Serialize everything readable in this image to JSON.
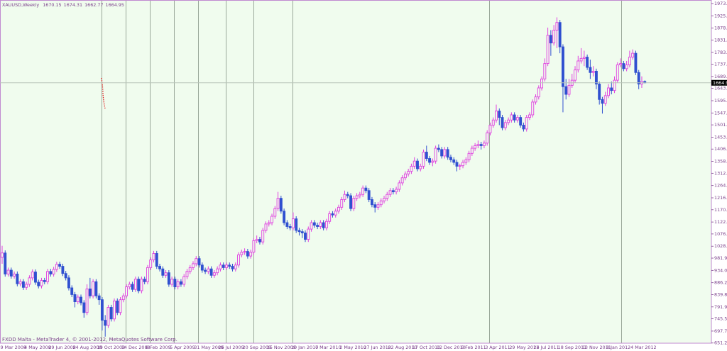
{
  "chart_data": {
    "type": "candlestick",
    "title": "XAUUSD,Weekly",
    "watermark": "FXDD Malta - MetaTrader 4, © 2001-2012, MetaQuotes Software Corp.",
    "up_color": "#e040e0",
    "down_color": "#3050d0",
    "background": "#f0fcee",
    "ylim": [
      650.5,
      1987.5
    ],
    "yticks": [
      {
        "value": 651.2,
        "label": "651.20"
      },
      {
        "value": 697.7,
        "label": "697.70"
      },
      745.55,
      791.95,
      {
        "value": 839.8,
        "label": "839.80"
      },
      {
        "value": 886.2,
        "label": "886.20"
      },
      934.05,
      {
        "value": 981.9,
        "label": "981.90"
      },
      {
        "value": 1028.3,
        "label": "1028.30"
      },
      1076.15,
      1122.55,
      {
        "value": 1170.4,
        "label": "1170.40"
      },
      {
        "value": 1216.8,
        "label": "1216.80"
      },
      1264.65,
      {
        "value": 1312.5,
        "label": "1312.50"
      },
      {
        "value": 1358.9,
        "label": "1358.90"
      },
      1406.75,
      {
        "value": 1453.1,
        "label": "1453.10"
      },
      {
        "value": 1501,
        "label": "1501.00"
      },
      {
        "value": 1547.4,
        "label": "1547.40"
      },
      1595.25,
      {
        "value": 1643.1,
        "label": "1643.10"
      },
      {
        "value": 1689.5,
        "label": "1689.50"
      },
      {
        "value": 1737.2,
        "label": "1737.20"
      },
      {
        "value": 1783.7,
        "label": "1783.70"
      },
      {
        "value": 1831.6,
        "label": "1831.60"
      },
      {
        "value": 1878,
        "label": "1878.00"
      },
      1925.85,
      1973.75
    ],
    "categories": [
      "9 Mar 2008",
      null,
      null,
      null,
      null,
      null,
      null,
      null,
      "4 May 2008",
      null,
      null,
      null,
      null,
      null,
      null,
      null,
      "29 Jun 2008",
      null,
      null,
      null,
      null,
      null,
      null,
      null,
      "24 Aug 2008",
      null,
      null,
      null,
      null,
      null,
      null,
      null,
      "19 Oct 2008",
      null,
      null,
      null,
      null,
      null,
      null,
      null,
      "14 Dec 2008",
      null,
      null,
      null,
      null,
      null,
      null,
      null,
      "8 Feb 2009",
      null,
      null,
      null,
      null,
      null,
      null,
      null,
      "5 Apr 2009",
      null,
      null,
      null,
      null,
      null,
      null,
      null,
      "31 May 2009",
      null,
      null,
      null,
      null,
      null,
      null,
      null,
      "26 Jul 2009",
      null,
      null,
      null,
      null,
      null,
      null,
      null,
      "20 Sep 2009",
      null,
      null,
      null,
      null,
      null,
      null,
      null,
      "15 Nov 2009",
      null,
      null,
      null,
      null,
      null,
      null,
      null,
      "10 Jan 2010",
      null,
      null,
      null,
      null,
      null,
      null,
      null,
      "7 Mar 2010",
      null,
      null,
      null,
      null,
      null,
      null,
      null,
      "2 May 2010",
      null,
      null,
      null,
      null,
      null,
      null,
      null,
      "27 Jun 2010",
      null,
      null,
      null,
      null,
      null,
      null,
      null,
      "22 Aug 2010",
      null,
      null,
      null,
      null,
      null,
      null,
      null,
      "17 Oct 2010",
      null,
      null,
      null,
      null,
      null,
      null,
      null,
      "12 Dec 2010",
      null,
      null,
      null,
      null,
      null,
      null,
      null,
      "6 Feb 2011",
      null,
      null,
      null,
      null,
      null,
      null,
      null,
      "3 Apr 2011",
      null,
      null,
      null,
      null,
      null,
      null,
      null,
      "29 May 2011",
      null,
      null,
      null,
      null,
      null,
      null,
      null,
      "24 Jul 2011",
      null,
      null,
      null,
      null,
      null,
      null,
      null,
      "18 Sep 2011",
      null,
      null,
      null,
      null,
      null,
      null,
      null,
      "13 Nov 2011",
      null,
      null,
      null,
      null,
      null,
      null,
      null,
      "8 Jan 2012",
      null,
      null,
      null,
      null,
      null,
      null,
      null,
      "4 Mar 2012",
      null,
      null,
      null,
      null
    ],
    "ohlc": [
      [
        985,
        1030,
        960,
        1002
      ],
      [
        1002,
        1012,
        910,
        920
      ],
      [
        920,
        945,
        910,
        935
      ],
      [
        935,
        945,
        902,
        912
      ],
      [
        912,
        930,
        902,
        920
      ],
      [
        920,
        930,
        872,
        882
      ],
      [
        882,
        900,
        872,
        890
      ],
      [
        890,
        900,
        858,
        868
      ],
      [
        868,
        890,
        858,
        880
      ],
      [
        880,
        915,
        870,
        905
      ],
      [
        905,
        938,
        895,
        928
      ],
      [
        928,
        938,
        878,
        888
      ],
      [
        888,
        898,
        864,
        874
      ],
      [
        874,
        905,
        864,
        895
      ],
      [
        895,
        905,
        880,
        890
      ],
      [
        890,
        940,
        880,
        930
      ],
      [
        930,
        940,
        910,
        920
      ],
      [
        920,
        948,
        910,
        938
      ],
      [
        938,
        968,
        928,
        958
      ],
      [
        958,
        968,
        940,
        950
      ],
      [
        950,
        960,
        912,
        922
      ],
      [
        922,
        932,
        895,
        905
      ],
      [
        905,
        915,
        856,
        866
      ],
      [
        866,
        876,
        830,
        840
      ],
      [
        840,
        850,
        790,
        812
      ],
      [
        812,
        840,
        802,
        830
      ],
      [
        830,
        840,
        798,
        808
      ],
      [
        808,
        818,
        750,
        770
      ],
      [
        770,
        880,
        760,
        862
      ],
      [
        862,
        905,
        825,
        835
      ],
      [
        835,
        900,
        825,
        890
      ],
      [
        890,
        900,
        825,
        835
      ],
      [
        835,
        845,
        800,
        820
      ],
      [
        820,
        830,
        700,
        740
      ],
      [
        740,
        760,
        676,
        720
      ],
      [
        720,
        800,
        710,
        790
      ],
      [
        790,
        800,
        735,
        745
      ],
      [
        745,
        825,
        735,
        815
      ],
      [
        815,
        825,
        760,
        770
      ],
      [
        770,
        830,
        760,
        820
      ],
      [
        820,
        845,
        810,
        835
      ],
      [
        835,
        880,
        825,
        870
      ],
      [
        870,
        890,
        860,
        880
      ],
      [
        880,
        890,
        850,
        860
      ],
      [
        860,
        910,
        850,
        900
      ],
      [
        900,
        910,
        845,
        855
      ],
      [
        855,
        910,
        845,
        900
      ],
      [
        900,
        910,
        880,
        890
      ],
      [
        890,
        955,
        880,
        945
      ],
      [
        945,
        985,
        935,
        975
      ],
      [
        975,
        1010,
        965,
        1000
      ],
      [
        1000,
        1010,
        940,
        950
      ],
      [
        950,
        960,
        930,
        940
      ],
      [
        940,
        950,
        905,
        915
      ],
      [
        915,
        935,
        905,
        925
      ],
      [
        925,
        935,
        870,
        880
      ],
      [
        880,
        910,
        870,
        900
      ],
      [
        900,
        910,
        860,
        870
      ],
      [
        870,
        900,
        860,
        890
      ],
      [
        890,
        900,
        870,
        880
      ],
      [
        880,
        920,
        870,
        910
      ],
      [
        910,
        940,
        900,
        930
      ],
      [
        930,
        955,
        920,
        945
      ],
      [
        945,
        970,
        935,
        960
      ],
      [
        960,
        990,
        950,
        980
      ],
      [
        980,
        990,
        945,
        955
      ],
      [
        955,
        965,
        925,
        935
      ],
      [
        935,
        945,
        920,
        930
      ],
      [
        930,
        950,
        920,
        940
      ],
      [
        940,
        950,
        905,
        915
      ],
      [
        915,
        935,
        905,
        925
      ],
      [
        925,
        950,
        915,
        940
      ],
      [
        940,
        965,
        930,
        955
      ],
      [
        955,
        965,
        935,
        945
      ],
      [
        945,
        965,
        935,
        955
      ],
      [
        955,
        965,
        940,
        950
      ],
      [
        950,
        960,
        930,
        940
      ],
      [
        940,
        965,
        930,
        955
      ],
      [
        955,
        1005,
        945,
        995
      ],
      [
        995,
        1015,
        985,
        1005
      ],
      [
        1005,
        1020,
        995,
        1008
      ],
      [
        1008,
        1018,
        980,
        990
      ],
      [
        990,
        1015,
        980,
        1005
      ],
      [
        1005,
        1060,
        995,
        1050
      ],
      [
        1050,
        1070,
        1040,
        1055
      ],
      [
        1055,
        1065,
        1035,
        1045
      ],
      [
        1045,
        1100,
        1035,
        1090
      ],
      [
        1090,
        1125,
        1080,
        1115
      ],
      [
        1115,
        1130,
        1105,
        1120
      ],
      [
        1120,
        1155,
        1110,
        1145
      ],
      [
        1145,
        1185,
        1135,
        1175
      ],
      [
        1175,
        1240,
        1165,
        1215
      ],
      [
        1215,
        1225,
        1155,
        1165
      ],
      [
        1165,
        1175,
        1110,
        1120
      ],
      [
        1120,
        1130,
        1095,
        1105
      ],
      [
        1105,
        1115,
        1090,
        1100
      ],
      [
        1100,
        1160,
        1090,
        1135
      ],
      [
        1135,
        1145,
        1080,
        1090
      ],
      [
        1090,
        1100,
        1070,
        1085
      ],
      [
        1085,
        1095,
        1060,
        1080
      ],
      [
        1080,
        1090,
        1045,
        1055
      ],
      [
        1055,
        1105,
        1045,
        1095
      ],
      [
        1095,
        1130,
        1085,
        1120
      ],
      [
        1120,
        1130,
        1100,
        1110
      ],
      [
        1110,
        1120,
        1095,
        1105
      ],
      [
        1105,
        1130,
        1095,
        1120
      ],
      [
        1120,
        1130,
        1090,
        1100
      ],
      [
        1100,
        1135,
        1090,
        1125
      ],
      [
        1125,
        1165,
        1115,
        1155
      ],
      [
        1155,
        1165,
        1140,
        1150
      ],
      [
        1150,
        1175,
        1140,
        1165
      ],
      [
        1165,
        1190,
        1155,
        1180
      ],
      [
        1180,
        1220,
        1170,
        1210
      ],
      [
        1210,
        1245,
        1200,
        1230
      ],
      [
        1230,
        1240,
        1215,
        1225
      ],
      [
        1225,
        1235,
        1165,
        1175
      ],
      [
        1175,
        1225,
        1165,
        1215
      ],
      [
        1215,
        1235,
        1205,
        1225
      ],
      [
        1225,
        1240,
        1215,
        1230
      ],
      [
        1230,
        1265,
        1220,
        1255
      ],
      [
        1255,
        1265,
        1235,
        1245
      ],
      [
        1245,
        1255,
        1200,
        1210
      ],
      [
        1210,
        1220,
        1180,
        1190
      ],
      [
        1190,
        1200,
        1160,
        1180
      ],
      [
        1180,
        1200,
        1170,
        1190
      ],
      [
        1190,
        1215,
        1180,
        1205
      ],
      [
        1205,
        1225,
        1195,
        1215
      ],
      [
        1215,
        1240,
        1205,
        1230
      ],
      [
        1230,
        1255,
        1220,
        1245
      ],
      [
        1245,
        1255,
        1230,
        1240
      ],
      [
        1240,
        1260,
        1230,
        1250
      ],
      [
        1250,
        1285,
        1240,
        1275
      ],
      [
        1275,
        1305,
        1265,
        1295
      ],
      [
        1295,
        1320,
        1285,
        1310
      ],
      [
        1310,
        1330,
        1300,
        1320
      ],
      [
        1320,
        1350,
        1310,
        1340
      ],
      [
        1340,
        1375,
        1330,
        1360
      ],
      [
        1360,
        1370,
        1320,
        1330
      ],
      [
        1330,
        1350,
        1320,
        1340
      ],
      [
        1340,
        1405,
        1330,
        1395
      ],
      [
        1395,
        1420,
        1360,
        1370
      ],
      [
        1370,
        1380,
        1345,
        1355
      ],
      [
        1355,
        1370,
        1340,
        1360
      ],
      [
        1360,
        1420,
        1350,
        1410
      ],
      [
        1410,
        1425,
        1395,
        1405
      ],
      [
        1405,
        1415,
        1370,
        1380
      ],
      [
        1380,
        1415,
        1370,
        1405
      ],
      [
        1405,
        1415,
        1365,
        1375
      ],
      [
        1375,
        1385,
        1355,
        1365
      ],
      [
        1365,
        1375,
        1345,
        1355
      ],
      [
        1355,
        1365,
        1320,
        1340
      ],
      [
        1340,
        1350,
        1325,
        1342
      ],
      [
        1342,
        1365,
        1332,
        1355
      ],
      [
        1355,
        1375,
        1345,
        1365
      ],
      [
        1365,
        1400,
        1355,
        1390
      ],
      [
        1390,
        1420,
        1380,
        1410
      ],
      [
        1410,
        1430,
        1400,
        1420
      ],
      [
        1420,
        1440,
        1410,
        1425
      ],
      [
        1425,
        1435,
        1405,
        1420
      ],
      [
        1420,
        1440,
        1410,
        1430
      ],
      [
        1430,
        1480,
        1420,
        1470
      ],
      [
        1470,
        1510,
        1460,
        1500
      ],
      [
        1500,
        1530,
        1490,
        1520
      ],
      [
        1520,
        1580,
        1510,
        1555
      ],
      [
        1555,
        1565,
        1500,
        1530
      ],
      [
        1530,
        1540,
        1480,
        1490
      ],
      [
        1490,
        1520,
        1480,
        1510
      ],
      [
        1510,
        1530,
        1500,
        1520
      ],
      [
        1520,
        1550,
        1510,
        1540
      ],
      [
        1540,
        1550,
        1510,
        1520
      ],
      [
        1520,
        1540,
        1510,
        1530
      ],
      [
        1530,
        1540,
        1490,
        1500
      ],
      [
        1500,
        1510,
        1475,
        1485
      ],
      [
        1485,
        1540,
        1475,
        1530
      ],
      [
        1530,
        1550,
        1520,
        1540
      ],
      [
        1540,
        1600,
        1530,
        1590
      ],
      [
        1590,
        1620,
        1580,
        1610
      ],
      [
        1610,
        1655,
        1600,
        1645
      ],
      [
        1645,
        1690,
        1635,
        1680
      ],
      [
        1680,
        1760,
        1670,
        1740
      ],
      [
        1740,
        1880,
        1730,
        1850
      ],
      [
        1850,
        1870,
        1770,
        1820
      ],
      [
        1820,
        1890,
        1810,
        1870
      ],
      [
        1870,
        1920,
        1800,
        1900
      ],
      [
        1900,
        1910,
        1780,
        1805
      ],
      [
        1805,
        1815,
        1550,
        1650
      ],
      [
        1650,
        1680,
        1600,
        1620
      ],
      [
        1620,
        1680,
        1610,
        1655
      ],
      [
        1655,
        1700,
        1645,
        1675
      ],
      [
        1675,
        1730,
        1665,
        1715
      ],
      [
        1715,
        1770,
        1705,
        1750
      ],
      [
        1750,
        1800,
        1740,
        1760
      ],
      [
        1760,
        1790,
        1730,
        1765
      ],
      [
        1765,
        1775,
        1715,
        1725
      ],
      [
        1725,
        1755,
        1680,
        1705
      ],
      [
        1705,
        1730,
        1690,
        1710
      ],
      [
        1710,
        1720,
        1640,
        1660
      ],
      [
        1660,
        1670,
        1580,
        1600
      ],
      [
        1600,
        1610,
        1545,
        1585
      ],
      [
        1585,
        1630,
        1575,
        1615
      ],
      [
        1615,
        1660,
        1605,
        1645
      ],
      [
        1645,
        1670,
        1620,
        1635
      ],
      [
        1635,
        1690,
        1625,
        1675
      ],
      [
        1675,
        1745,
        1665,
        1735
      ],
      [
        1735,
        1760,
        1725,
        1740
      ],
      [
        1740,
        1750,
        1710,
        1720
      ],
      [
        1720,
        1750,
        1710,
        1735
      ],
      [
        1735,
        1790,
        1725,
        1765
      ],
      [
        1765,
        1795,
        1755,
        1780
      ],
      [
        1780,
        1790,
        1695,
        1705
      ],
      [
        1705,
        1715,
        1640,
        1660
      ],
      [
        1660,
        1690,
        1645,
        1670
      ],
      [
        1670.15,
        1674.31,
        1662.77,
        1664.95
      ]
    ]
  }
}
